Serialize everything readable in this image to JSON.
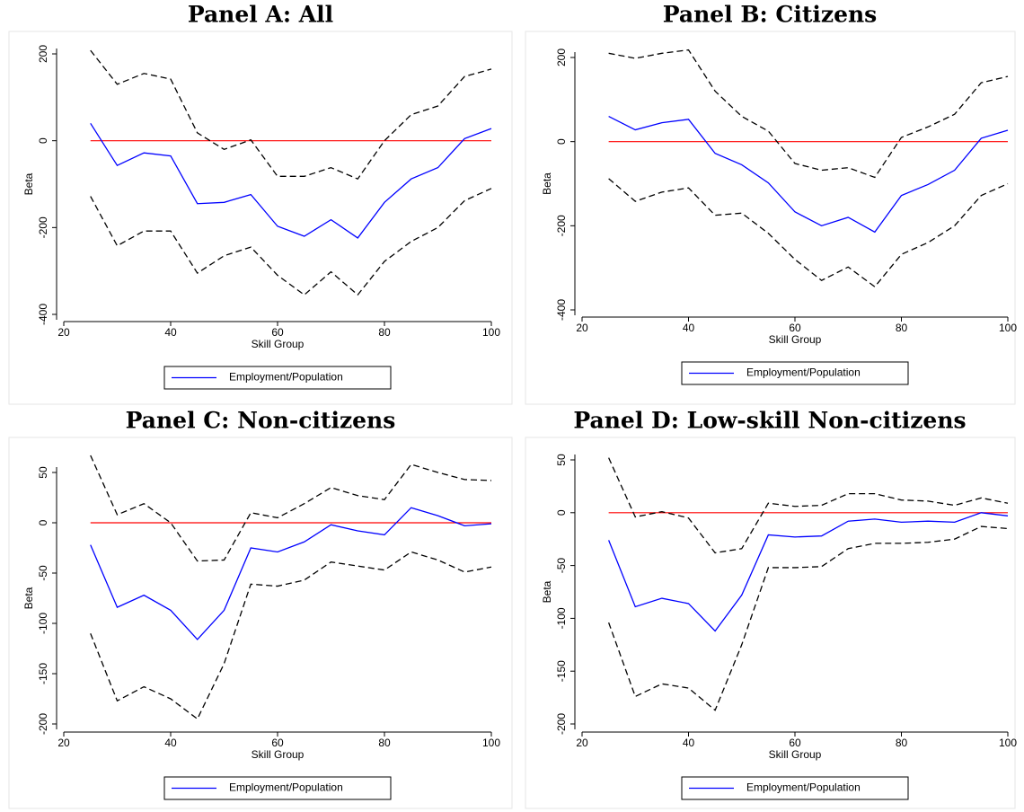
{
  "chart_data": [
    {
      "type": "line",
      "title": "Panel A: All",
      "x_label": "Skill Group",
      "y_label": "Beta",
      "x": [
        25,
        30,
        35,
        40,
        45,
        50,
        55,
        60,
        65,
        70,
        75,
        80,
        85,
        90,
        95,
        100
      ],
      "xlim": [
        20,
        100
      ],
      "xticks": [
        20,
        40,
        60,
        80,
        100
      ],
      "ylim": [
        -400,
        200
      ],
      "yticks": [
        -400,
        -200,
        0,
        200
      ],
      "reference_line": {
        "value": 0,
        "color": "#ff0000"
      },
      "series": [
        {
          "name": "Employment/Population",
          "color": "#0000ff",
          "values": [
            40,
            -57,
            -28,
            -35,
            -145,
            -142,
            -124,
            -197,
            -220,
            -182,
            -224,
            -142,
            -88,
            -62,
            5,
            28
          ]
        },
        {
          "color": "#000000",
          "dash": true,
          "values": [
            208,
            130,
            155,
            142,
            18,
            -20,
            2,
            -82,
            -82,
            -62,
            -88,
            0,
            60,
            80,
            148,
            165
          ]
        },
        {
          "color": "#000000",
          "dash": true,
          "values": [
            -128,
            -242,
            -208,
            -208,
            -305,
            -265,
            -245,
            -310,
            -355,
            -302,
            -355,
            -278,
            -232,
            -200,
            -138,
            -110
          ]
        }
      ]
    },
    {
      "type": "line",
      "title": "Panel B: Citizens",
      "x_label": "Skill Group",
      "y_label": "Beta",
      "x": [
        25,
        30,
        35,
        40,
        45,
        50,
        55,
        60,
        65,
        70,
        75,
        80,
        85,
        90,
        95,
        100
      ],
      "xlim": [
        20,
        100
      ],
      "xticks": [
        20,
        40,
        60,
        80,
        100
      ],
      "ylim": [
        -400,
        200
      ],
      "yticks": [
        -400,
        -200,
        0,
        200
      ],
      "reference_line": {
        "value": 0,
        "color": "#ff0000"
      },
      "series": [
        {
          "name": "Employment/Population",
          "color": "#0000ff",
          "values": [
            60,
            28,
            45,
            53,
            -28,
            -55,
            -98,
            -167,
            -200,
            -180,
            -215,
            -128,
            -102,
            -68,
            8,
            27
          ]
        },
        {
          "color": "#000000",
          "dash": true,
          "values": [
            210,
            198,
            210,
            218,
            120,
            60,
            25,
            -52,
            -68,
            -62,
            -85,
            10,
            35,
            65,
            140,
            155
          ]
        },
        {
          "color": "#000000",
          "dash": true,
          "values": [
            -88,
            -142,
            -120,
            -110,
            -175,
            -170,
            -218,
            -280,
            -330,
            -298,
            -345,
            -268,
            -240,
            -200,
            -128,
            -100
          ]
        }
      ]
    },
    {
      "type": "line",
      "title": "Panel C: Non-citizens",
      "x_label": "Skill Group",
      "y_label": "Beta",
      "x": [
        25,
        30,
        35,
        40,
        45,
        50,
        55,
        60,
        65,
        70,
        75,
        80,
        85,
        90,
        95,
        100
      ],
      "xlim": [
        20,
        100
      ],
      "xticks": [
        20,
        40,
        60,
        80,
        100
      ],
      "ylim": [
        -200,
        50
      ],
      "yticks": [
        -200,
        -150,
        -100,
        -50,
        0,
        50
      ],
      "reference_line": {
        "value": 0,
        "color": "#ff0000"
      },
      "series": [
        {
          "name": "Employment/Population",
          "color": "#0000ff",
          "values": [
            -22,
            -84,
            -72,
            -87,
            -116,
            -87,
            -25,
            -29,
            -19,
            -2,
            -8,
            -12,
            15,
            7,
            -3,
            -1
          ]
        },
        {
          "color": "#000000",
          "dash": true,
          "values": [
            67,
            8,
            19,
            0,
            -38,
            -37,
            10,
            5,
            19,
            35,
            27,
            23,
            58,
            50,
            43,
            42
          ]
        },
        {
          "color": "#000000",
          "dash": true,
          "values": [
            -110,
            -177,
            -163,
            -175,
            -195,
            -140,
            -61,
            -63,
            -57,
            -39,
            -43,
            -47,
            -29,
            -37,
            -49,
            -44
          ]
        }
      ]
    },
    {
      "type": "line",
      "title": "Panel D: Low-skill Non-citizens",
      "x_label": "Skill Group",
      "y_label": "Beta",
      "x": [
        25,
        30,
        35,
        40,
        45,
        50,
        55,
        60,
        65,
        70,
        75,
        80,
        85,
        90,
        95,
        100
      ],
      "xlim": [
        20,
        100
      ],
      "xticks": [
        20,
        40,
        60,
        80,
        100
      ],
      "ylim": [
        -200,
        50
      ],
      "yticks": [
        -200,
        -150,
        -100,
        -50,
        0,
        50
      ],
      "reference_line": {
        "value": 0,
        "color": "#ff0000"
      },
      "series": [
        {
          "name": "Employment/Population",
          "color": "#0000ff",
          "values": [
            -26,
            -89,
            -81,
            -86,
            -112,
            -78,
            -21,
            -23,
            -22,
            -8,
            -6,
            -9,
            -8,
            -9,
            0,
            -3
          ]
        },
        {
          "color": "#000000",
          "dash": true,
          "values": [
            52,
            -4,
            1,
            -5,
            -38,
            -34,
            9,
            6,
            7,
            18,
            18,
            12,
            11,
            7,
            14,
            9
          ]
        },
        {
          "color": "#000000",
          "dash": true,
          "values": [
            -104,
            -174,
            -162,
            -166,
            -187,
            -125,
            -52,
            -52,
            -51,
            -34,
            -29,
            -29,
            -28,
            -25,
            -13,
            -15
          ]
        }
      ]
    }
  ]
}
